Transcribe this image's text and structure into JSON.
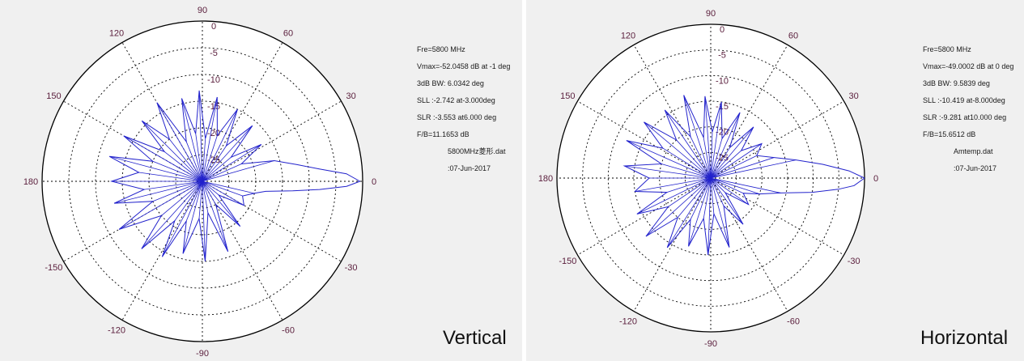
{
  "chart_data": [
    {
      "type": "polar",
      "title": "Vertical",
      "angle_labels": [
        "90",
        "60",
        "30",
        "0",
        "-30",
        "-60",
        "-90",
        "-120",
        "-150",
        "180",
        "150",
        "120"
      ],
      "radial_labels": [
        "0",
        "-5",
        "-10",
        "-15",
        "-20",
        "-25"
      ],
      "info": {
        "freq": "Fre=5800 MHz",
        "vmax": "Vmax=-52.0458 dB at -1 deg",
        "bw": "3dB BW: 6.0342 deg",
        "sll": "SLL :-2.742  at-3.000deg",
        "slr": "SLR :-3.553  at6.000 deg",
        "fb": "F/B=11.1653 dB",
        "file": "5800MHz菱形.dat",
        "date": ":07-Jun-2017"
      },
      "series": [
        {
          "color": "#2222cc",
          "points": [
            {
              "angle": 0,
              "value": -0.5
            },
            {
              "angle": -2,
              "value": -3
            },
            {
              "angle": -4,
              "value": -8
            },
            {
              "angle": -6,
              "value": -13
            },
            {
              "angle": -9,
              "value": -18
            },
            {
              "angle": -13,
              "value": -20
            },
            {
              "angle": -20,
              "value": -22
            },
            {
              "angle": -30,
              "value": -21
            },
            {
              "angle": -40,
              "value": -26
            },
            {
              "angle": -50,
              "value": -19
            },
            {
              "angle": -60,
              "value": -25
            },
            {
              "angle": -70,
              "value": -16
            },
            {
              "angle": -80,
              "value": -24
            },
            {
              "angle": -88,
              "value": -15
            },
            {
              "angle": -95,
              "value": -23
            },
            {
              "angle": -105,
              "value": -16
            },
            {
              "angle": -112,
              "value": -22
            },
            {
              "angle": -118,
              "value": -14
            },
            {
              "angle": -125,
              "value": -21
            },
            {
              "angle": -132,
              "value": -13
            },
            {
              "angle": -140,
              "value": -20
            },
            {
              "angle": -150,
              "value": -12
            },
            {
              "angle": -158,
              "value": -20
            },
            {
              "angle": -166,
              "value": -13
            },
            {
              "angle": -172,
              "value": -19
            },
            {
              "angle": 180,
              "value": -13
            },
            {
              "angle": 172,
              "value": -18
            },
            {
              "angle": 165,
              "value": -12
            },
            {
              "angle": 158,
              "value": -20
            },
            {
              "angle": 150,
              "value": -13
            },
            {
              "angle": 142,
              "value": -21
            },
            {
              "angle": 135,
              "value": -14
            },
            {
              "angle": 128,
              "value": -20
            },
            {
              "angle": 120,
              "value": -13
            },
            {
              "angle": 112,
              "value": -22
            },
            {
              "angle": 104,
              "value": -14
            },
            {
              "angle": 98,
              "value": -21
            },
            {
              "angle": 92,
              "value": -13
            },
            {
              "angle": 86,
              "value": -22
            },
            {
              "angle": 80,
              "value": -14
            },
            {
              "angle": 72,
              "value": -21
            },
            {
              "angle": 64,
              "value": -15
            },
            {
              "angle": 56,
              "value": -22
            },
            {
              "angle": 48,
              "value": -16
            },
            {
              "angle": 40,
              "value": -23
            },
            {
              "angle": 32,
              "value": -17
            },
            {
              "angle": 24,
              "value": -22
            },
            {
              "angle": 16,
              "value": -16
            },
            {
              "angle": 10,
              "value": -12
            },
            {
              "angle": 6,
              "value": -8
            },
            {
              "angle": 3,
              "value": -3
            },
            {
              "angle": 0,
              "value": -0.5
            }
          ]
        }
      ]
    },
    {
      "type": "polar",
      "title": "Horizontal",
      "angle_labels": [
        "90",
        "60",
        "30",
        "0",
        "-30",
        "-60",
        "-90",
        "-120",
        "-150",
        "180",
        "150",
        "120"
      ],
      "radial_labels": [
        "0",
        "-5",
        "-10",
        "-15",
        "-20",
        "-25"
      ],
      "info": {
        "freq": "Fre=5800 MHz",
        "vmax": "Vmax=-49.0002 dB at 0 deg",
        "bw": "3dB BW: 9.5839 deg",
        "sll": "SLL :-10.419  at-8.000deg",
        "slr": "SLR :-9.281  at10.000 deg",
        "fb": "F/B=15.6512 dB",
        "file": "Amtemp.dat",
        "date": ":07-Jun-2017"
      },
      "series": [
        {
          "color": "#2222cc",
          "points": [
            {
              "angle": 0,
              "value": 0
            },
            {
              "angle": -3,
              "value": -2
            },
            {
              "angle": -5,
              "value": -5
            },
            {
              "angle": -8,
              "value": -10
            },
            {
              "angle": -12,
              "value": -16
            },
            {
              "angle": -18,
              "value": -20
            },
            {
              "angle": -25,
              "value": -23
            },
            {
              "angle": -35,
              "value": -21
            },
            {
              "angle": -45,
              "value": -26
            },
            {
              "angle": -55,
              "value": -19
            },
            {
              "angle": -65,
              "value": -24
            },
            {
              "angle": -75,
              "value": -16
            },
            {
              "angle": -85,
              "value": -23
            },
            {
              "angle": -92,
              "value": -15
            },
            {
              "angle": -100,
              "value": -22
            },
            {
              "angle": -108,
              "value": -16
            },
            {
              "angle": -116,
              "value": -21
            },
            {
              "angle": -122,
              "value": -14
            },
            {
              "angle": -130,
              "value": -20
            },
            {
              "angle": -138,
              "value": -13
            },
            {
              "angle": -146,
              "value": -20
            },
            {
              "angle": -154,
              "value": -14
            },
            {
              "angle": -162,
              "value": -21
            },
            {
              "angle": -170,
              "value": -15
            },
            {
              "angle": 180,
              "value": -18
            },
            {
              "angle": 172,
              "value": -13
            },
            {
              "angle": 164,
              "value": -20
            },
            {
              "angle": 156,
              "value": -12
            },
            {
              "angle": 148,
              "value": -19
            },
            {
              "angle": 140,
              "value": -13
            },
            {
              "angle": 132,
              "value": -20
            },
            {
              "angle": 124,
              "value": -14
            },
            {
              "angle": 116,
              "value": -21
            },
            {
              "angle": 108,
              "value": -13
            },
            {
              "angle": 100,
              "value": -22
            },
            {
              "angle": 94,
              "value": -14
            },
            {
              "angle": 88,
              "value": -21
            },
            {
              "angle": 82,
              "value": -15
            },
            {
              "angle": 74,
              "value": -22
            },
            {
              "angle": 66,
              "value": -16
            },
            {
              "angle": 58,
              "value": -23
            },
            {
              "angle": 50,
              "value": -17
            },
            {
              "angle": 42,
              "value": -22
            },
            {
              "angle": 34,
              "value": -18
            },
            {
              "angle": 26,
              "value": -20
            },
            {
              "angle": 18,
              "value": -17
            },
            {
              "angle": 12,
              "value": -13
            },
            {
              "angle": 7,
              "value": -8
            },
            {
              "angle": 3,
              "value": -3
            },
            {
              "angle": 0,
              "value": 0
            }
          ]
        }
      ]
    }
  ]
}
